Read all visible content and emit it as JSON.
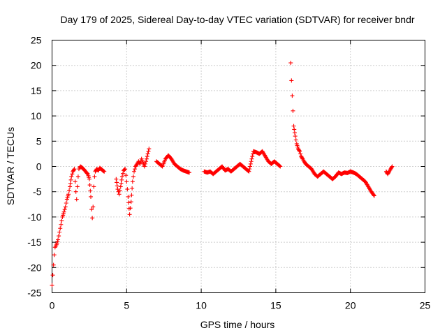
{
  "chart_data": {
    "type": "scatter",
    "title": "Day 179 of 2025, Sidereal Day-to-day VTEC variation (SDTVAR) for receiver bndr",
    "xlabel": "GPS time / hours",
    "ylabel": "SDTVAR / TECUs",
    "xlim": [
      0,
      25
    ],
    "ylim": [
      -25,
      25
    ],
    "xticks": [
      0,
      5,
      10,
      15,
      20,
      25
    ],
    "yticks": [
      -25,
      -20,
      -15,
      -10,
      -5,
      0,
      5,
      10,
      15,
      20,
      25
    ],
    "grid": true,
    "marker": "plus",
    "color": "#ff0000",
    "series": [
      {
        "name": "SDTVAR",
        "x": [
          0.0,
          0.05,
          0.1,
          0.15,
          0.2,
          0.3,
          0.4,
          0.5,
          0.6,
          0.7,
          0.8,
          0.9,
          1.0,
          1.1,
          1.2,
          1.3,
          1.4,
          1.5,
          1.55,
          1.6,
          1.65,
          1.7,
          1.75,
          1.8,
          1.9,
          2.0,
          2.1,
          2.2,
          2.3,
          2.4,
          2.5,
          2.6,
          2.65,
          2.7,
          2.75,
          2.8,
          2.85,
          2.9,
          3.0,
          3.1,
          3.2,
          3.3,
          3.4,
          3.5,
          4.3,
          4.4,
          4.5,
          4.6,
          4.7,
          4.8,
          4.9,
          5.0,
          5.1,
          5.2,
          5.3,
          5.4,
          5.5,
          5.6,
          5.7,
          5.8,
          5.9,
          6.0,
          6.1,
          6.2,
          6.3,
          6.5,
          7.0,
          7.2,
          7.4,
          7.6,
          7.8,
          8.0,
          8.2,
          8.4,
          8.6,
          8.8,
          9.0,
          9.2,
          10.2,
          10.4,
          10.6,
          10.8,
          11.0,
          11.2,
          11.4,
          11.6,
          11.8,
          12.0,
          12.2,
          12.4,
          12.6,
          12.8,
          13.0,
          13.2,
          13.5,
          13.7,
          13.9,
          14.1,
          14.3,
          14.5,
          14.7,
          14.9,
          15.1,
          15.3,
          16.0,
          16.05,
          16.1,
          16.15,
          16.2,
          16.3,
          16.4,
          16.5,
          16.6,
          16.7,
          16.8,
          16.9,
          17.0,
          17.2,
          17.4,
          17.6,
          17.8,
          18.0,
          18.2,
          18.4,
          18.6,
          18.8,
          19.0,
          19.2,
          19.4,
          19.6,
          19.8,
          20.0,
          20.2,
          20.4,
          20.6,
          20.8,
          21.0,
          21.2,
          21.4,
          21.6,
          22.4,
          22.5,
          22.6,
          22.7,
          22.8
        ],
        "y": [
          -23.5,
          -21.5,
          -19.5,
          -17.5,
          -16.0,
          -15.5,
          -14.5,
          -13.0,
          -11.5,
          -10.0,
          -9.0,
          -8.0,
          -6.5,
          -5.5,
          -4.0,
          -2.0,
          -1.0,
          -0.5,
          -3.0,
          -5.0,
          -6.5,
          -4.0,
          -2.0,
          -0.5,
          0.0,
          -0.2,
          -0.5,
          -0.8,
          -1.2,
          -1.5,
          -2.5,
          -6.0,
          -8.5,
          -10.2,
          -8.0,
          -4.0,
          -2.0,
          -1.0,
          -0.5,
          -0.8,
          -0.3,
          -0.5,
          -0.8,
          -1.0,
          -2.5,
          -4.5,
          -5.5,
          -4.0,
          -2.0,
          -0.8,
          -0.5,
          -3.0,
          -6.0,
          -9.5,
          -7.0,
          -3.0,
          -1.0,
          0.0,
          0.5,
          1.0,
          0.5,
          1.5,
          0.8,
          0.0,
          1.0,
          3.5,
          1.0,
          0.5,
          0.0,
          1.5,
          2.2,
          1.5,
          0.5,
          0.0,
          -0.5,
          -0.8,
          -1.0,
          -1.2,
          -1.0,
          -1.2,
          -1.0,
          -1.5,
          -1.0,
          -0.5,
          0.0,
          -0.8,
          -0.5,
          -1.0,
          -0.5,
          0.0,
          0.5,
          0.0,
          -0.5,
          -1.0,
          3.0,
          2.8,
          2.5,
          3.0,
          2.0,
          1.0,
          0.5,
          1.0,
          0.5,
          0.0,
          20.5,
          17.0,
          14.0,
          11.0,
          8.0,
          6.0,
          4.5,
          3.5,
          3.0,
          2.0,
          1.5,
          1.0,
          0.5,
          0.0,
          -0.5,
          -1.5,
          -2.0,
          -1.5,
          -1.0,
          -1.5,
          -2.0,
          -2.5,
          -2.0,
          -1.2,
          -1.5,
          -1.2,
          -1.3,
          -1.0,
          -1.2,
          -1.5,
          -2.0,
          -2.5,
          -3.0,
          -4.0,
          -5.0,
          -5.8,
          -1.0,
          -1.5,
          -1.0,
          -0.5,
          0.0
        ]
      }
    ]
  }
}
